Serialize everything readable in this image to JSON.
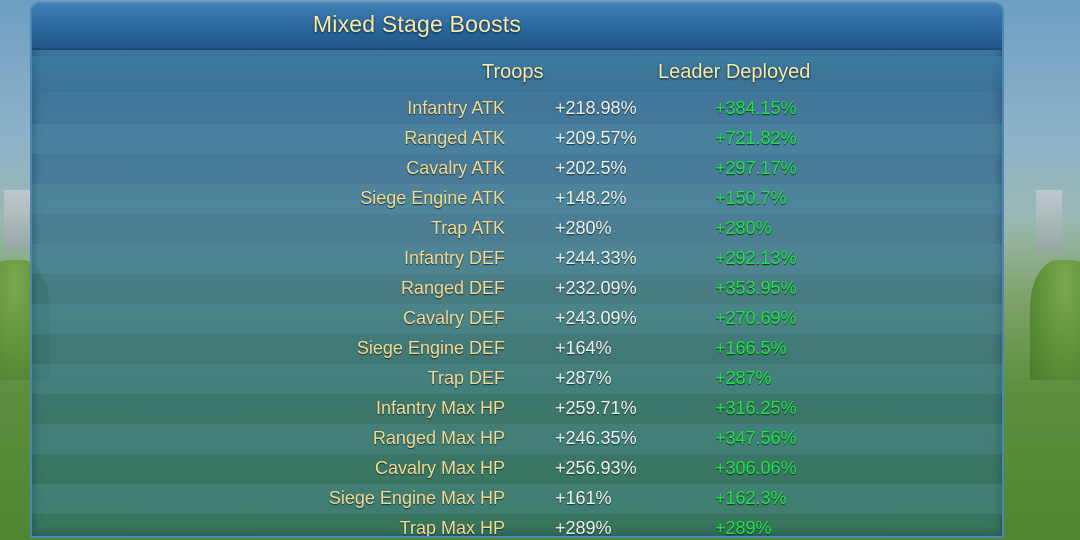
{
  "panel": {
    "title": "Mixed Stage Boosts",
    "headers": {
      "troops": "Troops",
      "leader": "Leader Deployed"
    },
    "rows": [
      {
        "label": "Infantry ATK",
        "troops": "+218.98%",
        "leader": "+384.15%"
      },
      {
        "label": "Ranged ATK",
        "troops": "+209.57%",
        "leader": "+721.82%"
      },
      {
        "label": "Cavalry ATK",
        "troops": "+202.5%",
        "leader": "+297.17%"
      },
      {
        "label": "Siege Engine ATK",
        "troops": "+148.2%",
        "leader": "+150.7%"
      },
      {
        "label": "Trap ATK",
        "troops": "+280%",
        "leader": "+280%"
      },
      {
        "label": "Infantry DEF",
        "troops": "+244.33%",
        "leader": "+292.13%"
      },
      {
        "label": "Ranged DEF",
        "troops": "+232.09%",
        "leader": "+353.95%"
      },
      {
        "label": "Cavalry DEF",
        "troops": "+243.09%",
        "leader": "+270.69%"
      },
      {
        "label": "Siege Engine DEF",
        "troops": "+164%",
        "leader": "+166.5%"
      },
      {
        "label": "Trap DEF",
        "troops": "+287%",
        "leader": "+287%"
      },
      {
        "label": "Infantry Max HP",
        "troops": "+259.71%",
        "leader": "+316.25%"
      },
      {
        "label": "Ranged Max HP",
        "troops": "+246.35%",
        "leader": "+347.56%"
      },
      {
        "label": "Cavalry Max HP",
        "troops": "+256.93%",
        "leader": "+306.06%"
      },
      {
        "label": "Siege Engine Max HP",
        "troops": "+161%",
        "leader": "+162.3%"
      },
      {
        "label": "Trap Max HP",
        "troops": "+289%",
        "leader": "+289%"
      }
    ]
  },
  "colors": {
    "label_gold": "#f5d98e",
    "troop_value_white": "#f2f3ea",
    "leader_value_green": "#22e34a",
    "title_gold": "#fbe9a6"
  }
}
